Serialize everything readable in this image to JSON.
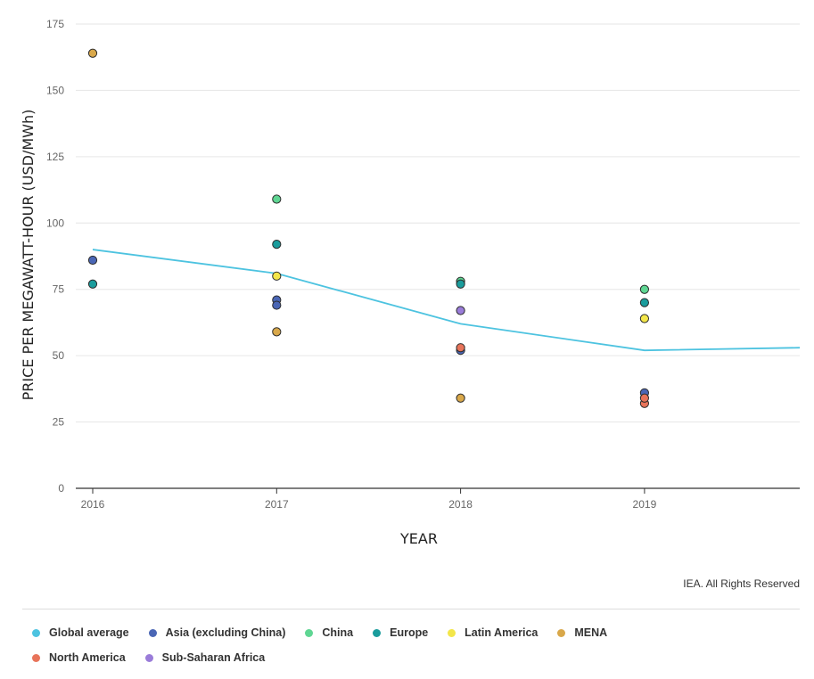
{
  "chart_data": {
    "type": "scatter",
    "xlabel": "YEAR",
    "ylabel": "PRICE PER MEGAWATT-HOUR (USD/MWh)",
    "x_ticks": [
      "2016",
      "2017",
      "2018",
      "2019"
    ],
    "y_ticks": [
      "0",
      "25",
      "50",
      "75",
      "100",
      "125",
      "150",
      "175"
    ],
    "ylim": [
      0,
      175
    ],
    "grid": true,
    "legend_position": "bottom",
    "line_series": {
      "name": "Global average",
      "color": "#4dc3e0",
      "points": [
        [
          2016,
          90
        ],
        [
          2017,
          81
        ],
        [
          2018,
          62
        ],
        [
          2019,
          52
        ],
        [
          2020,
          53
        ]
      ]
    },
    "scatter_series": [
      {
        "name": "Asia (excluding China)",
        "color": "#4a66b5",
        "points": [
          [
            2016,
            86
          ],
          [
            2017,
            71
          ],
          [
            2017,
            69
          ],
          [
            2018,
            52
          ],
          [
            2019,
            36
          ]
        ]
      },
      {
        "name": "China",
        "color": "#5fd693",
        "points": [
          [
            2017,
            109
          ],
          [
            2018,
            78
          ],
          [
            2019,
            75
          ]
        ]
      },
      {
        "name": "Europe",
        "color": "#1a9c9c",
        "points": [
          [
            2016,
            77
          ],
          [
            2017,
            92
          ],
          [
            2018,
            77
          ],
          [
            2019,
            70
          ]
        ]
      },
      {
        "name": "Latin America",
        "color": "#f3e64a",
        "points": [
          [
            2017,
            80
          ],
          [
            2019,
            64
          ]
        ]
      },
      {
        "name": "MENA",
        "color": "#d9a84a",
        "points": [
          [
            2016,
            164
          ],
          [
            2017,
            59
          ],
          [
            2018,
            34
          ]
        ]
      },
      {
        "name": "North America",
        "color": "#e8745a",
        "points": [
          [
            2018,
            53
          ],
          [
            2019,
            32
          ],
          [
            2019,
            34
          ]
        ]
      },
      {
        "name": "Sub-Saharan Africa",
        "color": "#9a7cd9",
        "points": [
          [
            2018,
            67
          ]
        ]
      }
    ]
  },
  "credit": "IEA. All Rights Reserved",
  "legend": [
    {
      "label": "Global average",
      "color": "#4dc3e0"
    },
    {
      "label": "Asia (excluding China)",
      "color": "#4a66b5"
    },
    {
      "label": "China",
      "color": "#5fd693"
    },
    {
      "label": "Europe",
      "color": "#1a9c9c"
    },
    {
      "label": "Latin America",
      "color": "#f3e64a"
    },
    {
      "label": "MENA",
      "color": "#d9a84a"
    },
    {
      "label": "North America",
      "color": "#e8745a"
    },
    {
      "label": "Sub-Saharan Africa",
      "color": "#9a7cd9"
    }
  ]
}
